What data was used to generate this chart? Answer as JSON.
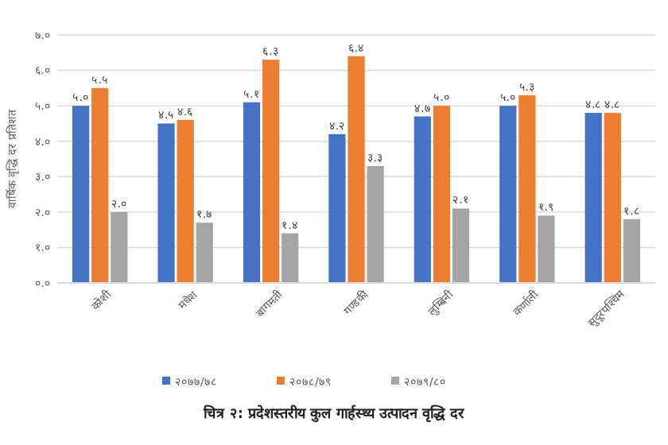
{
  "chart_data": {
    "type": "bar",
    "title": "चित्र २: प्रदेशस्तरीय कुल गार्हस्थ्य उत्पादन वृद्धि दर",
    "ylabel": "वार्षिक वृद्धि दर प्रतिशत",
    "categories": [
      "कोशी",
      "मधेश",
      "बागमती",
      "गण्डकी",
      "लुम्बिनी",
      "कर्णाली",
      "सुदूरपश्चिम"
    ],
    "series": [
      {
        "name": "२०७७/७८",
        "color": "#4472c4",
        "values": [
          5.0,
          4.5,
          5.1,
          4.2,
          4.7,
          5.0,
          4.8
        ],
        "value_labels": [
          "५.०",
          "४.५",
          "५.१",
          "४.२",
          "४.७",
          "५.०",
          "४.८"
        ]
      },
      {
        "name": "२०७८/७९",
        "color": "#ed7d31",
        "values": [
          5.5,
          4.6,
          6.3,
          6.4,
          5.0,
          5.3,
          4.8
        ],
        "value_labels": [
          "५.५",
          "४.६",
          "६.३",
          "६.४",
          "५.०",
          "५.३",
          "४.८"
        ]
      },
      {
        "name": "२०७९/८०",
        "color": "#a5a5a5",
        "values": [
          2.0,
          1.7,
          1.4,
          3.3,
          2.1,
          1.9,
          1.8
        ],
        "value_labels": [
          "२.०",
          "१.७",
          "१.४",
          "३.३",
          "२.१",
          "१.९",
          "१.८"
        ]
      }
    ],
    "ylim": [
      0,
      7
    ],
    "yticks": [
      {
        "value": 0,
        "label": "०.०"
      },
      {
        "value": 1,
        "label": "१.०"
      },
      {
        "value": 2,
        "label": "२.०"
      },
      {
        "value": 3,
        "label": "३.०"
      },
      {
        "value": 4,
        "label": "४.०"
      },
      {
        "value": 5,
        "label": "५.०"
      },
      {
        "value": 6,
        "label": "६.०"
      },
      {
        "value": 7,
        "label": "७.०"
      }
    ],
    "grid": "y",
    "legend": "bottom"
  }
}
